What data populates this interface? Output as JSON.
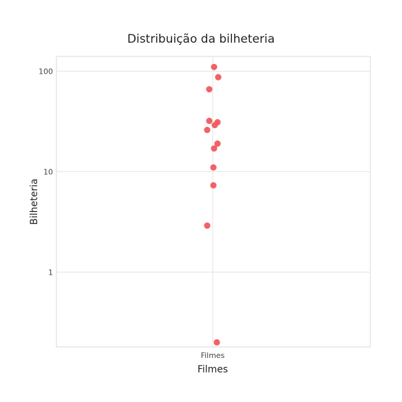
{
  "chart_data": {
    "type": "scatter",
    "title": "Distribuição da bilheteria",
    "xlabel": "Filmes",
    "ylabel": "Bilheteria",
    "categories": [
      "Filmes"
    ],
    "y_scale": "log10",
    "ylim": [
      0.18,
      140
    ],
    "y_ticks": [
      1,
      10,
      100
    ],
    "y_tick_labels": [
      "1",
      "10",
      "100"
    ],
    "grid": true,
    "marker_color": "#f05a5f",
    "points": [
      {
        "category": "Filmes",
        "y": 110
      },
      {
        "category": "Filmes",
        "y": 87
      },
      {
        "category": "Filmes",
        "y": 66
      },
      {
        "category": "Filmes",
        "y": 32
      },
      {
        "category": "Filmes",
        "y": 31
      },
      {
        "category": "Filmes",
        "y": 29
      },
      {
        "category": "Filmes",
        "y": 26
      },
      {
        "category": "Filmes",
        "y": 19
      },
      {
        "category": "Filmes",
        "y": 17
      },
      {
        "category": "Filmes",
        "y": 11
      },
      {
        "category": "Filmes",
        "y": 7.3
      },
      {
        "category": "Filmes",
        "y": 2.9
      },
      {
        "category": "Filmes",
        "y": 0.2
      }
    ]
  }
}
